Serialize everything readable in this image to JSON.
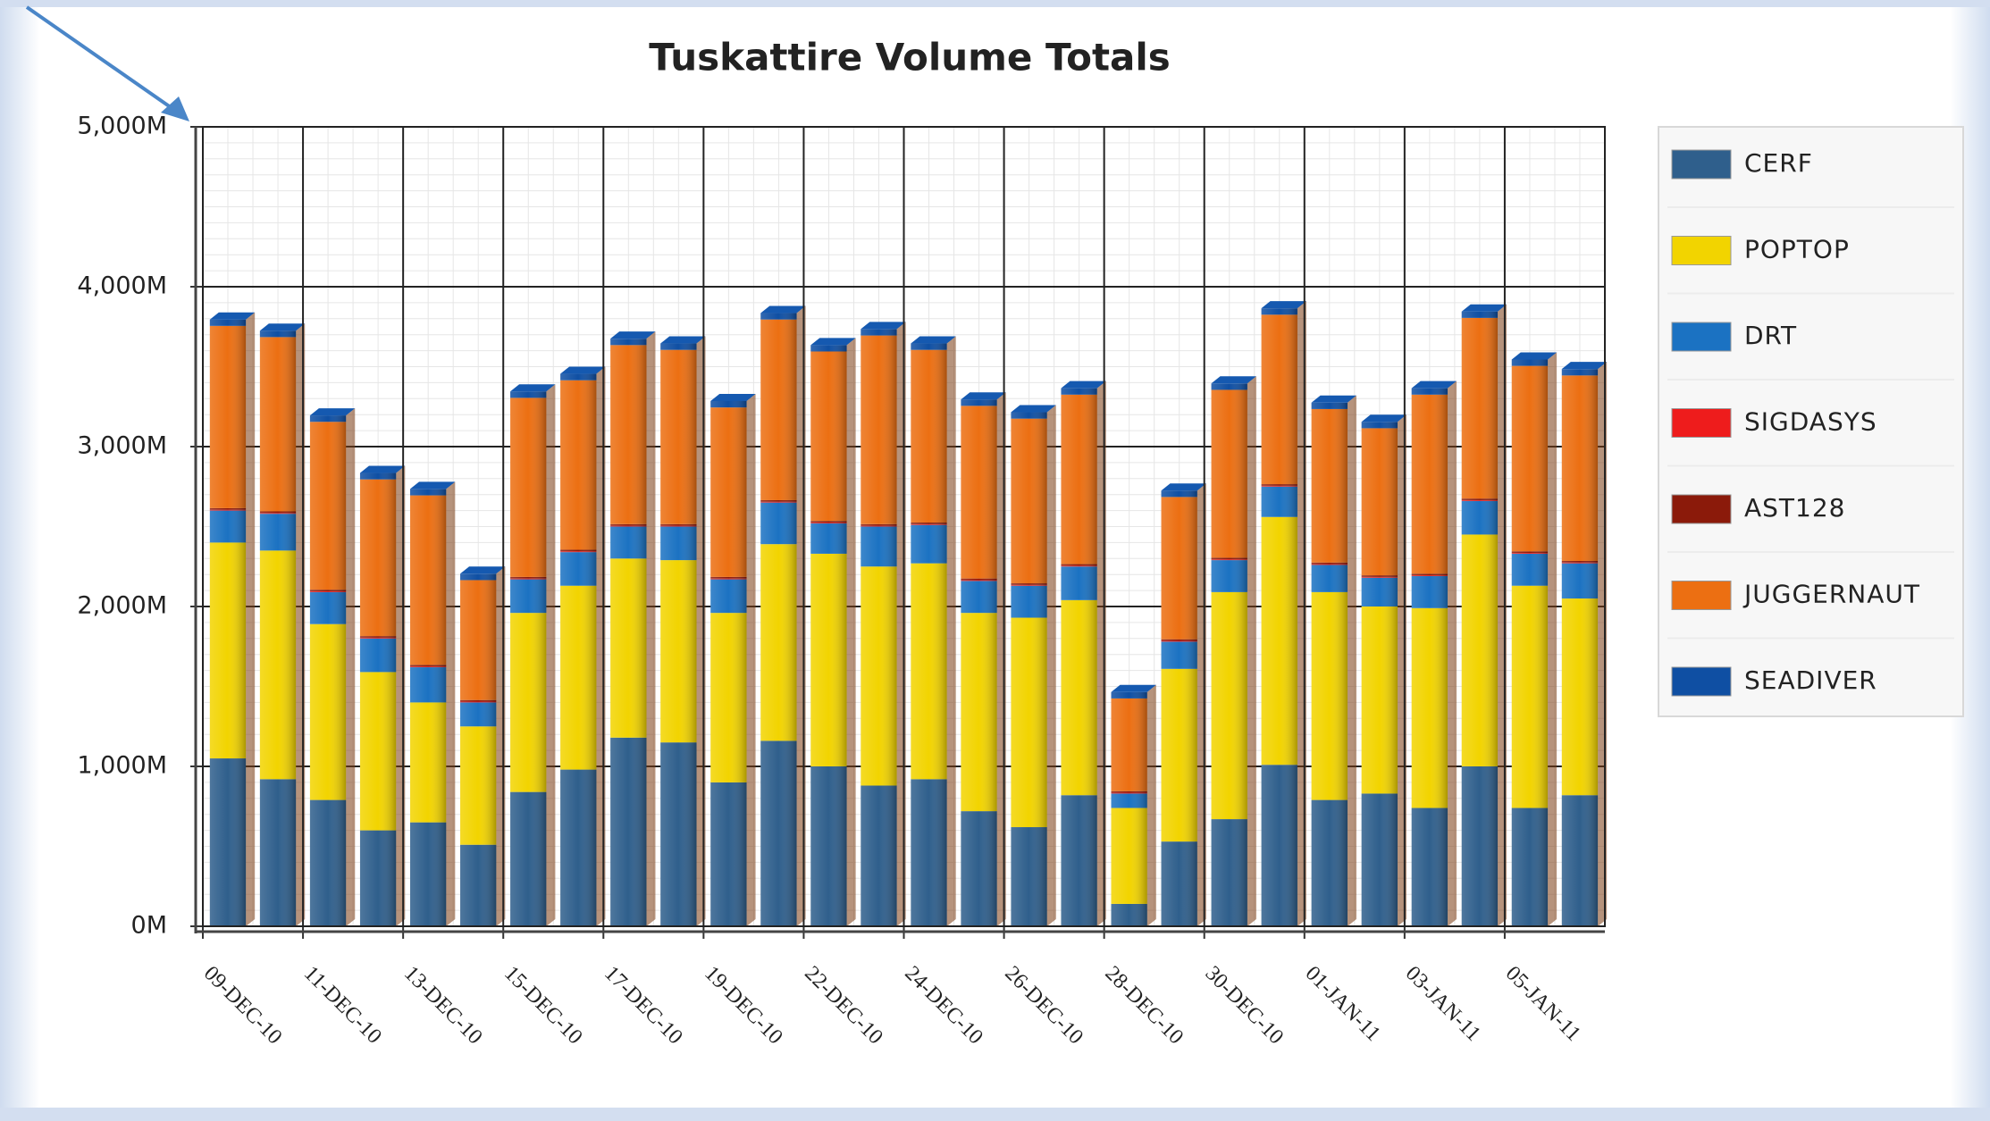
{
  "chart_data": {
    "type": "stacked_bar",
    "title": "Tuskattire Volume Totals",
    "categories": [
      "09-DEC-10",
      null,
      "11-DEC-10",
      null,
      "13-DEC-10",
      null,
      "15-DEC-10",
      null,
      "17-DEC-10",
      null,
      "19-DEC-10",
      null,
      "22-DEC-10",
      null,
      "24-DEC-10",
      null,
      "26-DEC-10",
      null,
      "28-DEC-10",
      null,
      "30-DEC-10",
      null,
      "01-JAN-11",
      null,
      "03-JAN-11",
      null,
      "05-JAN-11",
      null
    ],
    "series": [
      {
        "name": "CERF",
        "color": "#2f5f8c",
        "values": [
          1050,
          920,
          790,
          600,
          650,
          510,
          840,
          980,
          1180,
          1150,
          900,
          1160,
          1000,
          880,
          920,
          720,
          620,
          820,
          140,
          530,
          670,
          1010,
          790,
          830,
          740,
          1000,
          740,
          820
        ]
      },
      {
        "name": "POPTOP",
        "color": "#f2d400",
        "values": [
          1350,
          1430,
          1100,
          990,
          750,
          740,
          1120,
          1150,
          1120,
          1140,
          1060,
          1230,
          1330,
          1370,
          1350,
          1240,
          1310,
          1220,
          600,
          1080,
          1420,
          1550,
          1300,
          1170,
          1250,
          1450,
          1390,
          1230
        ]
      },
      {
        "name": "DRT",
        "color": "#1b72c2",
        "values": [
          200,
          230,
          200,
          210,
          220,
          150,
          210,
          210,
          200,
          210,
          210,
          260,
          190,
          250,
          240,
          200,
          200,
          210,
          90,
          170,
          200,
          190,
          170,
          180,
          200,
          210,
          200,
          220
        ]
      },
      {
        "name": "SIGDASYS",
        "color": "#ee1c1c",
        "values": [
          5,
          5,
          5,
          5,
          5,
          5,
          5,
          5,
          5,
          5,
          5,
          5,
          5,
          5,
          5,
          5,
          5,
          5,
          5,
          5,
          5,
          5,
          5,
          5,
          5,
          5,
          5,
          5
        ]
      },
      {
        "name": "AST128",
        "color": "#8b1a0a",
        "values": [
          10,
          10,
          10,
          10,
          10,
          10,
          10,
          10,
          10,
          10,
          10,
          10,
          10,
          10,
          10,
          10,
          10,
          10,
          10,
          10,
          10,
          10,
          10,
          10,
          10,
          10,
          10,
          10
        ]
      },
      {
        "name": "JUGGERNAUT",
        "color": "#ec6f12",
        "values": [
          1140,
          1090,
          1050,
          980,
          1060,
          750,
          1120,
          1060,
          1120,
          1090,
          1060,
          1130,
          1060,
          1180,
          1080,
          1080,
          1030,
          1060,
          580,
          890,
          1050,
          1060,
          960,
          920,
          1120,
          1130,
          1160,
          1160
        ]
      },
      {
        "name": "SEADIVER",
        "color": "#0f4fa3",
        "values": [
          40,
          40,
          40,
          40,
          40,
          40,
          40,
          40,
          40,
          40,
          40,
          40,
          40,
          40,
          40,
          40,
          40,
          40,
          40,
          40,
          40,
          40,
          40,
          40,
          40,
          40,
          40,
          40
        ]
      }
    ],
    "ylim": [
      0,
      5000
    ],
    "yticks": [
      {
        "value": 0,
        "label": "0M"
      },
      {
        "value": 1000,
        "label": "1,000M"
      },
      {
        "value": 2000,
        "label": "2,000M"
      },
      {
        "value": 3000,
        "label": "3,000M"
      },
      {
        "value": 4000,
        "label": "4,000M"
      },
      {
        "value": 5000,
        "label": "5,000M"
      }
    ],
    "grid": true,
    "legend": "right"
  }
}
